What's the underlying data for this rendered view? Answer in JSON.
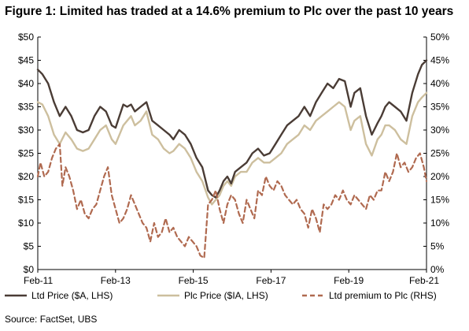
{
  "chart_data": {
    "type": "line",
    "title": "Figure 1: Limited has traded at a 14.6% premium to Plc over the past 10 years",
    "source": "Source:  FactSet, UBS",
    "x_labels": [
      "Feb-11",
      "Feb-13",
      "Feb-15",
      "Feb-17",
      "Feb-19",
      "Feb-21"
    ],
    "x_range": [
      2011.08,
      2021.17
    ],
    "ylim_left": [
      0,
      50
    ],
    "ylim_right": [
      0,
      50
    ],
    "y_ticks_left": [
      "$0",
      "$5",
      "$10",
      "$15",
      "$20",
      "$25",
      "$30",
      "$35",
      "$40",
      "$45",
      "$50"
    ],
    "y_ticks_right": [
      "0%",
      "5%",
      "10%",
      "15%",
      "20%",
      "25%",
      "30%",
      "35%",
      "40%",
      "45%",
      "50%"
    ],
    "grid": false,
    "legend_position": "bottom",
    "series": [
      {
        "name": "Ltd Price ($A, LHS)",
        "axis": "left",
        "color": "#4a3c35",
        "style": "solid",
        "x": [
          2011.08,
          2011.2,
          2011.35,
          2011.5,
          2011.65,
          2011.8,
          2011.95,
          2012.1,
          2012.25,
          2012.4,
          2012.55,
          2012.7,
          2012.85,
          2013.0,
          2013.1,
          2013.2,
          2013.3,
          2013.4,
          2013.5,
          2013.6,
          2013.75,
          2013.9,
          2014.05,
          2014.2,
          2014.35,
          2014.5,
          2014.6,
          2014.75,
          2014.9,
          2015.05,
          2015.2,
          2015.35,
          2015.5,
          2015.6,
          2015.7,
          2015.8,
          2015.9,
          2016.0,
          2016.1,
          2016.2,
          2016.35,
          2016.5,
          2016.65,
          2016.8,
          2016.95,
          2017.1,
          2017.25,
          2017.4,
          2017.55,
          2017.7,
          2017.85,
          2018.0,
          2018.15,
          2018.3,
          2018.45,
          2018.6,
          2018.75,
          2018.9,
          2019.05,
          2019.2,
          2019.3,
          2019.45,
          2019.6,
          2019.75,
          2019.9,
          2020.0,
          2020.1,
          2020.2,
          2020.35,
          2020.5,
          2020.65,
          2020.8,
          2020.95,
          2021.05,
          2021.17
        ],
        "values": [
          43,
          42,
          40,
          36,
          33,
          35,
          33,
          30,
          29.5,
          30,
          33,
          35,
          34,
          31,
          30.5,
          33,
          35.5,
          35,
          35.5,
          34,
          35,
          36,
          32,
          31,
          30,
          29,
          28,
          30,
          29,
          27,
          24,
          22,
          17,
          16,
          15.5,
          17,
          19,
          20,
          18.5,
          21,
          22,
          23,
          25,
          26,
          24.5,
          25,
          27,
          29,
          31,
          32,
          33,
          35,
          33,
          36,
          38,
          40,
          39,
          41,
          40.5,
          35,
          38,
          39,
          33,
          29,
          31.5,
          33,
          35,
          36,
          35,
          34,
          32,
          38,
          42,
          44,
          45
        ]
      },
      {
        "name": "Plc Price ($IA, LHS)",
        "axis": "left",
        "color": "#cdbf9e",
        "style": "solid",
        "x": [
          2011.08,
          2011.2,
          2011.35,
          2011.5,
          2011.65,
          2011.8,
          2011.95,
          2012.1,
          2012.25,
          2012.4,
          2012.55,
          2012.7,
          2012.85,
          2013.0,
          2013.1,
          2013.2,
          2013.3,
          2013.4,
          2013.5,
          2013.6,
          2013.75,
          2013.9,
          2014.05,
          2014.2,
          2014.35,
          2014.5,
          2014.6,
          2014.75,
          2014.9,
          2015.05,
          2015.2,
          2015.35,
          2015.5,
          2015.6,
          2015.7,
          2015.8,
          2015.9,
          2016.0,
          2016.1,
          2016.2,
          2016.35,
          2016.5,
          2016.65,
          2016.8,
          2016.95,
          2017.1,
          2017.25,
          2017.4,
          2017.55,
          2017.7,
          2017.85,
          2018.0,
          2018.15,
          2018.3,
          2018.45,
          2018.6,
          2018.75,
          2018.9,
          2019.05,
          2019.2,
          2019.3,
          2019.45,
          2019.6,
          2019.75,
          2019.9,
          2020.0,
          2020.1,
          2020.2,
          2020.35,
          2020.5,
          2020.65,
          2020.8,
          2020.95,
          2021.05,
          2021.17
        ],
        "values": [
          36,
          35.5,
          33,
          29,
          27,
          29.5,
          28,
          26,
          25.5,
          26,
          28,
          30,
          31,
          28,
          27,
          29,
          31,
          32,
          33,
          31,
          32,
          34,
          29,
          28,
          26,
          25,
          25.5,
          27,
          26,
          24,
          21,
          19,
          15.5,
          14,
          15,
          16,
          18,
          19,
          18,
          20,
          21,
          21,
          23,
          24,
          23,
          23,
          24,
          25,
          27,
          28,
          29,
          31,
          30,
          32,
          33,
          34,
          35,
          36,
          35,
          30,
          32,
          33,
          27,
          24.5,
          28,
          29,
          31,
          31,
          30,
          28,
          27,
          33,
          36,
          37,
          38
        ]
      },
      {
        "name": "Ltd premium to Plc (RHS)",
        "axis": "right",
        "color": "#b06a50",
        "style": "dashed",
        "x": [
          2011.08,
          2011.15,
          2011.25,
          2011.35,
          2011.45,
          2011.55,
          2011.65,
          2011.72,
          2011.8,
          2011.9,
          2012.0,
          2012.1,
          2012.2,
          2012.3,
          2012.4,
          2012.5,
          2012.6,
          2012.7,
          2012.8,
          2012.9,
          2013.0,
          2013.1,
          2013.2,
          2013.3,
          2013.4,
          2013.5,
          2013.6,
          2013.7,
          2013.8,
          2013.9,
          2014.0,
          2014.1,
          2014.2,
          2014.3,
          2014.4,
          2014.5,
          2014.6,
          2014.7,
          2014.8,
          2014.9,
          2015.0,
          2015.1,
          2015.2,
          2015.3,
          2015.4,
          2015.5,
          2015.6,
          2015.7,
          2015.8,
          2015.9,
          2016.0,
          2016.1,
          2016.2,
          2016.3,
          2016.4,
          2016.5,
          2016.6,
          2016.7,
          2016.8,
          2016.9,
          2017.0,
          2017.1,
          2017.2,
          2017.3,
          2017.4,
          2017.5,
          2017.6,
          2017.7,
          2017.8,
          2017.9,
          2018.0,
          2018.1,
          2018.2,
          2018.3,
          2018.4,
          2018.5,
          2018.6,
          2018.7,
          2018.8,
          2018.9,
          2019.0,
          2019.1,
          2019.2,
          2019.3,
          2019.4,
          2019.5,
          2019.6,
          2019.7,
          2019.8,
          2019.9,
          2020.0,
          2020.05,
          2020.1,
          2020.2,
          2020.3,
          2020.4,
          2020.5,
          2020.6,
          2020.7,
          2020.8,
          2020.9,
          2021.0,
          2021.1,
          2021.17
        ],
        "values": [
          20,
          23,
          20,
          21,
          24,
          26,
          27,
          18,
          22,
          20,
          17,
          13,
          15,
          12,
          11,
          13,
          14,
          17,
          20,
          22,
          16,
          13,
          10,
          11,
          13,
          16,
          14,
          12,
          10,
          9,
          6,
          10,
          7,
          8,
          11,
          8,
          9,
          7,
          6,
          5,
          7,
          6,
          5,
          3,
          2.5,
          14,
          15,
          17,
          13,
          10,
          14,
          16,
          15,
          12,
          10,
          15,
          13,
          11,
          17,
          16,
          20,
          18,
          17,
          19,
          18,
          16,
          15,
          14,
          15,
          13,
          12,
          9,
          13,
          11,
          8,
          14,
          13,
          14,
          16,
          15,
          17,
          15,
          14,
          16,
          15,
          14,
          13,
          16,
          15,
          17,
          17,
          19,
          21,
          19,
          21,
          25,
          22,
          23,
          21,
          22,
          24,
          25,
          22,
          19
        ]
      }
    ]
  }
}
